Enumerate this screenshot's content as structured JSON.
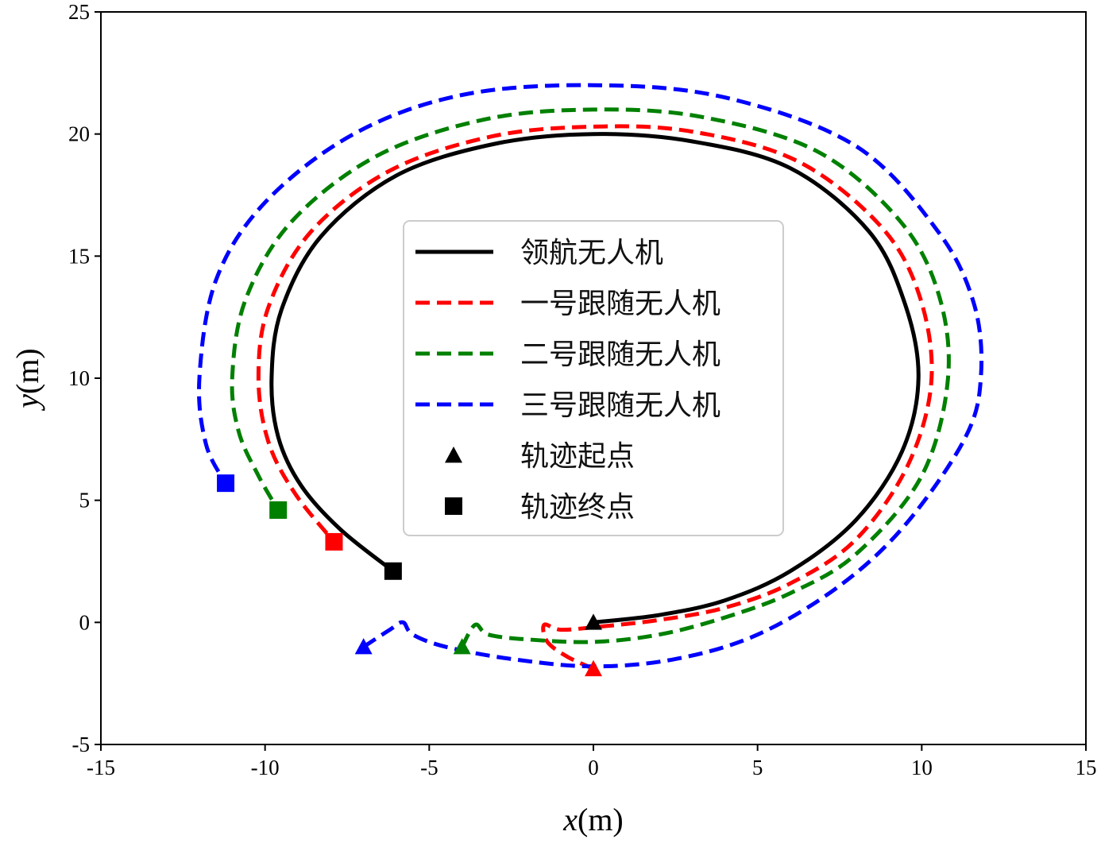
{
  "chart_data": {
    "type": "line",
    "title": "",
    "xlabel": {
      "var": "x",
      "unit": "(m)"
    },
    "ylabel": {
      "var": "y",
      "unit": "(m)"
    },
    "xlim": [
      -15,
      15
    ],
    "ylim": [
      -5,
      25
    ],
    "xticks": [
      -15,
      -10,
      -5,
      0,
      5,
      10,
      15
    ],
    "yticks": [
      -5,
      0,
      5,
      10,
      15,
      20,
      25
    ],
    "xtick_labels": [
      "-15",
      "-10",
      "-5",
      "0",
      "5",
      "10",
      "15"
    ],
    "ytick_labels": [
      "-5",
      "0",
      "5",
      "10",
      "15",
      "20",
      "25"
    ],
    "grid": false,
    "legend_position": "center",
    "series": [
      {
        "name": "领航无人机",
        "color": "#000000",
        "style": "solid",
        "start": [
          0,
          0
        ],
        "end": [
          -6.1,
          2.1
        ],
        "points": [
          [
            0,
            0
          ],
          [
            2,
            0.3
          ],
          [
            4,
            0.9
          ],
          [
            6,
            2.1
          ],
          [
            8,
            4.2
          ],
          [
            9.4,
            7.0
          ],
          [
            9.9,
            10.0
          ],
          [
            9.5,
            13.0
          ],
          [
            8.4,
            16.0
          ],
          [
            6.0,
            18.6
          ],
          [
            3.0,
            19.7
          ],
          [
            0,
            20.0
          ],
          [
            -3.0,
            19.6
          ],
          [
            -6.0,
            18.3
          ],
          [
            -8.3,
            15.8
          ],
          [
            -9.5,
            12.8
          ],
          [
            -9.8,
            10.0
          ],
          [
            -9.6,
            7.6
          ],
          [
            -8.9,
            5.6
          ],
          [
            -7.7,
            3.8
          ],
          [
            -6.1,
            2.1
          ]
        ]
      },
      {
        "name": "一号跟随无人机",
        "color": "#ff0000",
        "style": "dashed",
        "start": [
          0,
          -1.9
        ],
        "end": [
          -7.9,
          3.3
        ],
        "points": [
          [
            0,
            -1.9
          ],
          [
            -0.8,
            -1.4
          ],
          [
            -1.4,
            -0.8
          ],
          [
            -1.5,
            -0.1
          ],
          [
            -1.0,
            -0.3
          ],
          [
            0,
            -0.2
          ],
          [
            2,
            0.1
          ],
          [
            4,
            0.6
          ],
          [
            6,
            1.6
          ],
          [
            8,
            3.4
          ],
          [
            9.6,
            6.5
          ],
          [
            10.3,
            10.0
          ],
          [
            9.9,
            13.5
          ],
          [
            8.7,
            16.3
          ],
          [
            6.2,
            18.9
          ],
          [
            3.0,
            20.1
          ],
          [
            0,
            20.3
          ],
          [
            -3.1,
            19.9
          ],
          [
            -6.2,
            18.5
          ],
          [
            -8.6,
            16.0
          ],
          [
            -9.9,
            12.9
          ],
          [
            -10.2,
            10.0
          ],
          [
            -9.9,
            7.4
          ],
          [
            -9.1,
            5.3
          ],
          [
            -7.9,
            3.3
          ]
        ]
      },
      {
        "name": "二号跟随无人机",
        "color": "#008000",
        "style": "dashed",
        "start": [
          -4.0,
          -1.0
        ],
        "end": [
          -9.6,
          4.6
        ],
        "points": [
          [
            -4.0,
            -1.0
          ],
          [
            -3.6,
            -0.1
          ],
          [
            -3.2,
            -0.5
          ],
          [
            -2.0,
            -0.7
          ],
          [
            0,
            -0.8
          ],
          [
            2,
            -0.5
          ],
          [
            4,
            0.2
          ],
          [
            6,
            1.2
          ],
          [
            8,
            2.8
          ],
          [
            10.0,
            6.0
          ],
          [
            10.8,
            10.0
          ],
          [
            10.5,
            13.5
          ],
          [
            9.3,
            16.5
          ],
          [
            6.8,
            19.3
          ],
          [
            3.3,
            20.7
          ],
          [
            0,
            21.0
          ],
          [
            -3.3,
            20.6
          ],
          [
            -6.6,
            19.1
          ],
          [
            -9.2,
            16.4
          ],
          [
            -10.6,
            13.2
          ],
          [
            -11.0,
            10.0
          ],
          [
            -10.8,
            7.8
          ],
          [
            -10.2,
            6.0
          ],
          [
            -9.6,
            4.6
          ]
        ]
      },
      {
        "name": "三号跟随无人机",
        "color": "#0000ff",
        "style": "dashed",
        "start": [
          -7.0,
          -1.0
        ],
        "end": [
          -11.2,
          5.7
        ],
        "points": [
          [
            -7.0,
            -1.0
          ],
          [
            -6.2,
            -0.3
          ],
          [
            -5.8,
            0.0
          ],
          [
            -5.5,
            -0.5
          ],
          [
            -4.5,
            -1.0
          ],
          [
            -2.5,
            -1.5
          ],
          [
            0,
            -1.8
          ],
          [
            2.5,
            -1.5
          ],
          [
            5,
            -0.5
          ],
          [
            7.5,
            1.5
          ],
          [
            9.5,
            4.0
          ],
          [
            11.3,
            7.5
          ],
          [
            11.8,
            10.0
          ],
          [
            11.6,
            13.0
          ],
          [
            10.5,
            16.0
          ],
          [
            8.0,
            19.5
          ],
          [
            4.0,
            21.5
          ],
          [
            0,
            22.0
          ],
          [
            -4.0,
            21.6
          ],
          [
            -7.3,
            20.0
          ],
          [
            -10.0,
            17.2
          ],
          [
            -11.5,
            14.0
          ],
          [
            -12.0,
            10.0
          ],
          [
            -11.8,
            7.3
          ],
          [
            -11.2,
            5.7
          ]
        ]
      }
    ],
    "marker_legend": [
      {
        "name": "轨迹起点",
        "marker": "triangle"
      },
      {
        "name": "轨迹终点",
        "marker": "square"
      }
    ]
  }
}
